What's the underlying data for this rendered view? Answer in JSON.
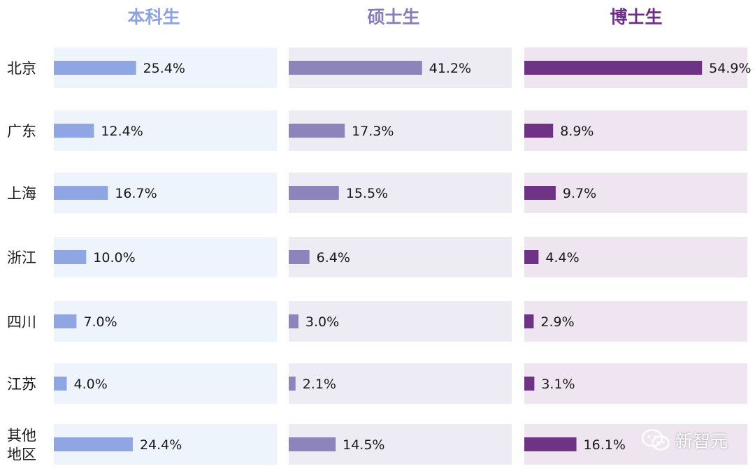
{
  "chart_data": {
    "type": "bar",
    "orientation": "horizontal",
    "categories": [
      "北京",
      "广东",
      "上海",
      "浙江",
      "四川",
      "江苏",
      "其他地区"
    ],
    "category_display": [
      [
        "北京"
      ],
      [
        "广东"
      ],
      [
        "上海"
      ],
      [
        "浙江"
      ],
      [
        "四川"
      ],
      [
        "江苏"
      ],
      [
        "其他",
        "地区"
      ]
    ],
    "value_suffix": "%",
    "series": [
      {
        "name": "本科生",
        "values": [
          25.4,
          12.4,
          16.7,
          10.0,
          7.0,
          4.0,
          24.4
        ],
        "labels": [
          "25.4%",
          "12.4%",
          "16.7%",
          "10.0%",
          "7.0%",
          "4.0%",
          "24.4%"
        ],
        "header_color": "#8FA2E0",
        "bar_color": "#8FA6E2",
        "panel_color": "#EEF4FB"
      },
      {
        "name": "硕士生",
        "values": [
          41.2,
          17.3,
          15.5,
          6.4,
          3.0,
          2.1,
          14.5
        ],
        "labels": [
          "41.2%",
          "17.3%",
          "15.5%",
          "6.4%",
          "3.0%",
          "2.1%",
          "14.5%"
        ],
        "header_color": "#8A7CB6",
        "bar_color": "#8C84BA",
        "panel_color": "#EDEBF3"
      },
      {
        "name": "博士生",
        "values": [
          54.9,
          8.9,
          9.7,
          4.4,
          2.9,
          3.1,
          16.1
        ],
        "labels": [
          "54.9%",
          "8.9%",
          "9.7%",
          "4.4%",
          "2.9%",
          "3.1%",
          "16.1%"
        ],
        "header_color": "#6E2F86",
        "bar_color": "#6F3386",
        "panel_color": "#EEE5F1"
      }
    ],
    "legend": "none",
    "grid": false
  },
  "watermark": {
    "text": "新智元",
    "icon": "wechat-icon"
  }
}
